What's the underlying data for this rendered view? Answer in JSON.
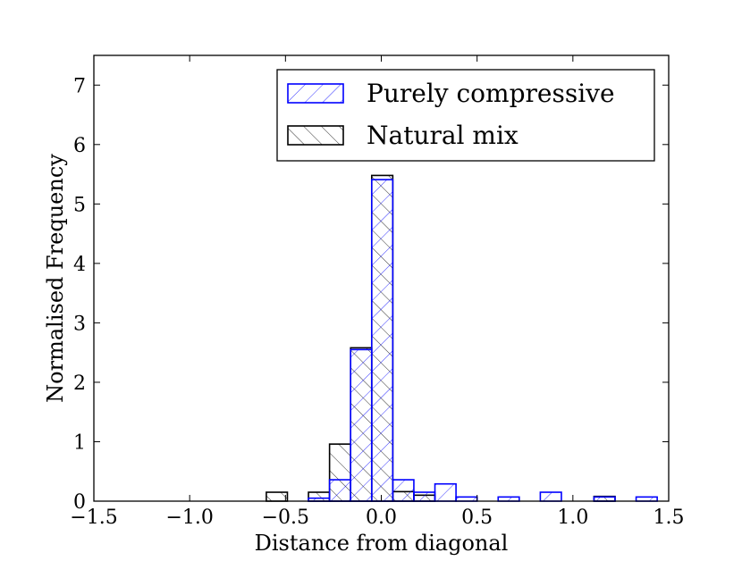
{
  "chart_data": {
    "type": "bar",
    "title": "",
    "xlabel": "Distance from diagonal",
    "ylabel": "Normalised Frequency",
    "xlim": [
      -1.5,
      1.5
    ],
    "ylim": [
      0,
      7.5
    ],
    "xticks": [
      -1.5,
      -1.0,
      -0.5,
      0.0,
      0.5,
      1.0,
      1.5
    ],
    "xtick_labels": [
      "−1.5",
      "−1.0",
      "−0.5",
      "0.0",
      "0.5",
      "1.0",
      "1.5"
    ],
    "yticks": [
      0,
      1,
      2,
      3,
      4,
      5,
      6,
      7
    ],
    "ytick_labels": [
      "0",
      "1",
      "2",
      "3",
      "4",
      "5",
      "6",
      "7"
    ],
    "grid": false,
    "legend_position": "top-right",
    "series": [
      {
        "name": "Natural mix",
        "color": "#000000",
        "hatch": "backslash",
        "bins": [
          {
            "x0": -0.6,
            "x1": -0.49,
            "value": 0.15
          },
          {
            "x0": -0.38,
            "x1": -0.27,
            "value": 0.15
          },
          {
            "x0": -0.27,
            "x1": -0.16,
            "value": 0.96
          },
          {
            "x0": -0.16,
            "x1": -0.05,
            "value": 2.58
          },
          {
            "x0": -0.05,
            "x1": 0.06,
            "value": 5.48
          },
          {
            "x0": 0.06,
            "x1": 0.17,
            "value": 0.16
          },
          {
            "x0": 0.17,
            "x1": 0.28,
            "value": 0.1
          },
          {
            "x0": 1.11,
            "x1": 1.22,
            "value": 0.08
          }
        ]
      },
      {
        "name": "Purely compressive",
        "color": "#0000ff",
        "hatch": "slash",
        "bins": [
          {
            "x0": -0.38,
            "x1": -0.27,
            "value": 0.05
          },
          {
            "x0": -0.27,
            "x1": -0.16,
            "value": 0.36
          },
          {
            "x0": -0.16,
            "x1": -0.05,
            "value": 2.55
          },
          {
            "x0": -0.05,
            "x1": 0.06,
            "value": 5.41
          },
          {
            "x0": 0.06,
            "x1": 0.17,
            "value": 0.36
          },
          {
            "x0": 0.17,
            "x1": 0.28,
            "value": 0.15
          },
          {
            "x0": 0.28,
            "x1": 0.39,
            "value": 0.29
          },
          {
            "x0": 0.39,
            "x1": 0.5,
            "value": 0.07
          },
          {
            "x0": 0.61,
            "x1": 0.72,
            "value": 0.07
          },
          {
            "x0": 0.83,
            "x1": 0.94,
            "value": 0.15
          },
          {
            "x0": 1.11,
            "x1": 1.22,
            "value": 0.07
          },
          {
            "x0": 1.33,
            "x1": 1.44,
            "value": 0.07
          }
        ]
      }
    ],
    "legend": [
      {
        "label": "Purely compressive",
        "color": "#0000ff",
        "hatch": "slash"
      },
      {
        "label": "Natural mix",
        "color": "#000000",
        "hatch": "backslash"
      }
    ]
  }
}
